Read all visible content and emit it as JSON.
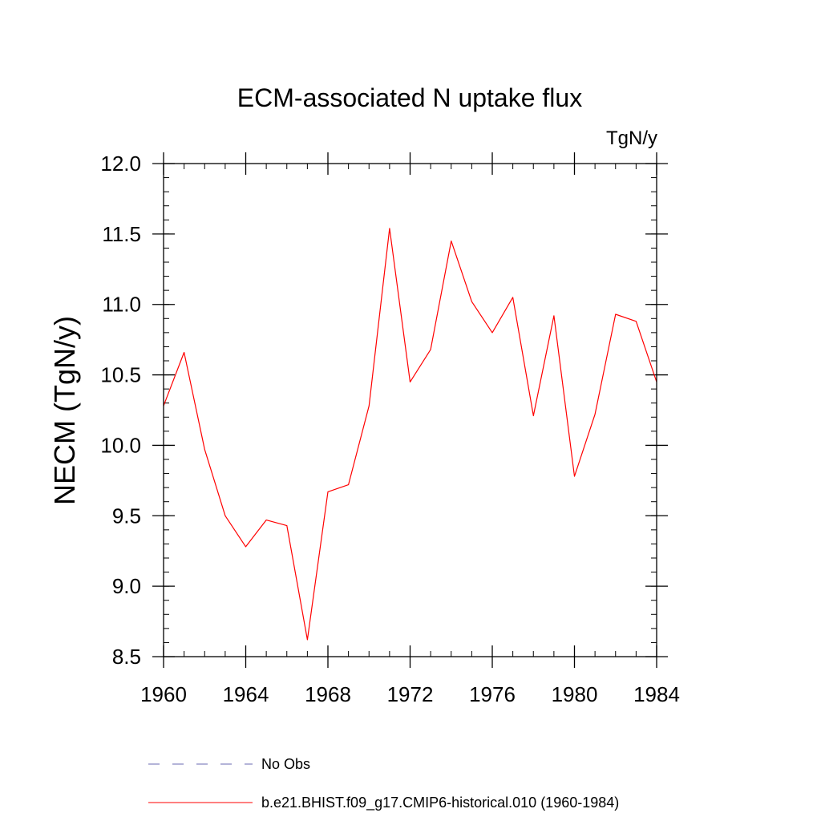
{
  "chart_data": {
    "type": "line",
    "title": "ECM-associated N uptake flux",
    "units_label": "TgN/y",
    "ylabel": "NECM  (TgN/y)",
    "xlabel": "",
    "xlim": [
      1960,
      1984
    ],
    "ylim": [
      8.5,
      12.0
    ],
    "x_ticks": [
      1960,
      1964,
      1968,
      1972,
      1976,
      1980,
      1984
    ],
    "y_ticks": [
      "8.5",
      "9.0",
      "9.5",
      "10.0",
      "10.5",
      "11.0",
      "11.5",
      "12.0"
    ],
    "grid": false,
    "legend_position": "bottom",
    "legend": [
      {
        "label": "No Obs",
        "color": "#6a6ab0",
        "dashed": true
      },
      {
        "label": "b.e21.BHIST.f09_g17.CMIP6-historical.010 (1960-1984)",
        "color": "#ff0000",
        "dashed": false
      }
    ],
    "series": [
      {
        "name": "b.e21.BHIST.f09_g17.CMIP6-historical.010 (1960-1984)",
        "color": "#ff0000",
        "x": [
          1960,
          1961,
          1962,
          1963,
          1964,
          1965,
          1966,
          1967,
          1968,
          1969,
          1970,
          1971,
          1972,
          1973,
          1974,
          1975,
          1976,
          1977,
          1978,
          1979,
          1980,
          1981,
          1982,
          1983,
          1984
        ],
        "values": [
          10.28,
          10.66,
          9.97,
          9.5,
          9.28,
          9.47,
          9.43,
          8.62,
          9.67,
          9.72,
          10.28,
          11.54,
          10.45,
          10.68,
          11.45,
          11.02,
          10.8,
          11.05,
          10.21,
          10.92,
          9.78,
          10.22,
          10.93,
          10.88,
          10.45
        ]
      }
    ]
  }
}
